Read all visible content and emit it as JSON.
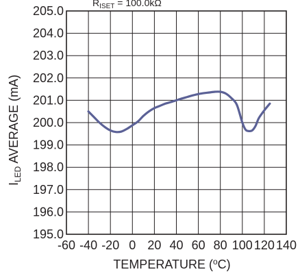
{
  "chart_data": {
    "type": "line",
    "title_partial": "R_ISET = 100.0kΩ",
    "xlabel": "TEMPERATURE (°C)",
    "ylabel": "I_LED AVERAGE (mA)",
    "xlim": [
      -60,
      140
    ],
    "ylim": [
      195.0,
      205.0
    ],
    "x_ticks": [
      "-60",
      "-40",
      "-20",
      "0",
      "20",
      "40",
      "60",
      "80",
      "100",
      "120",
      "140"
    ],
    "y_ticks": [
      "195.0",
      "196.0",
      "197.0",
      "198.0",
      "199.0",
      "200.0",
      "201.0",
      "202.0",
      "203.0",
      "204.0",
      "205.0"
    ],
    "grid": true,
    "series": [
      {
        "color": "#5b6196",
        "x": [
          -40,
          -35,
          -30,
          -25,
          -20,
          -15,
          -10,
          -5,
          0,
          5,
          10,
          15,
          20,
          25,
          30,
          35,
          40,
          45,
          50,
          55,
          60,
          65,
          70,
          75,
          80,
          85,
          90,
          95,
          100,
          103,
          106,
          109,
          112,
          115,
          120,
          125
        ],
        "y": [
          200.5,
          200.25,
          200.0,
          199.8,
          199.65,
          199.58,
          199.6,
          199.72,
          199.88,
          200.05,
          200.3,
          200.5,
          200.65,
          200.75,
          200.85,
          200.92,
          201.0,
          201.08,
          201.15,
          201.22,
          201.28,
          201.32,
          201.35,
          201.38,
          201.38,
          201.3,
          201.1,
          200.8,
          200.0,
          199.68,
          199.62,
          199.65,
          199.85,
          200.2,
          200.55,
          200.85
        ]
      }
    ]
  },
  "colors": {
    "line": "#5b6196",
    "frame": "#231f20",
    "text": "#231f20"
  }
}
